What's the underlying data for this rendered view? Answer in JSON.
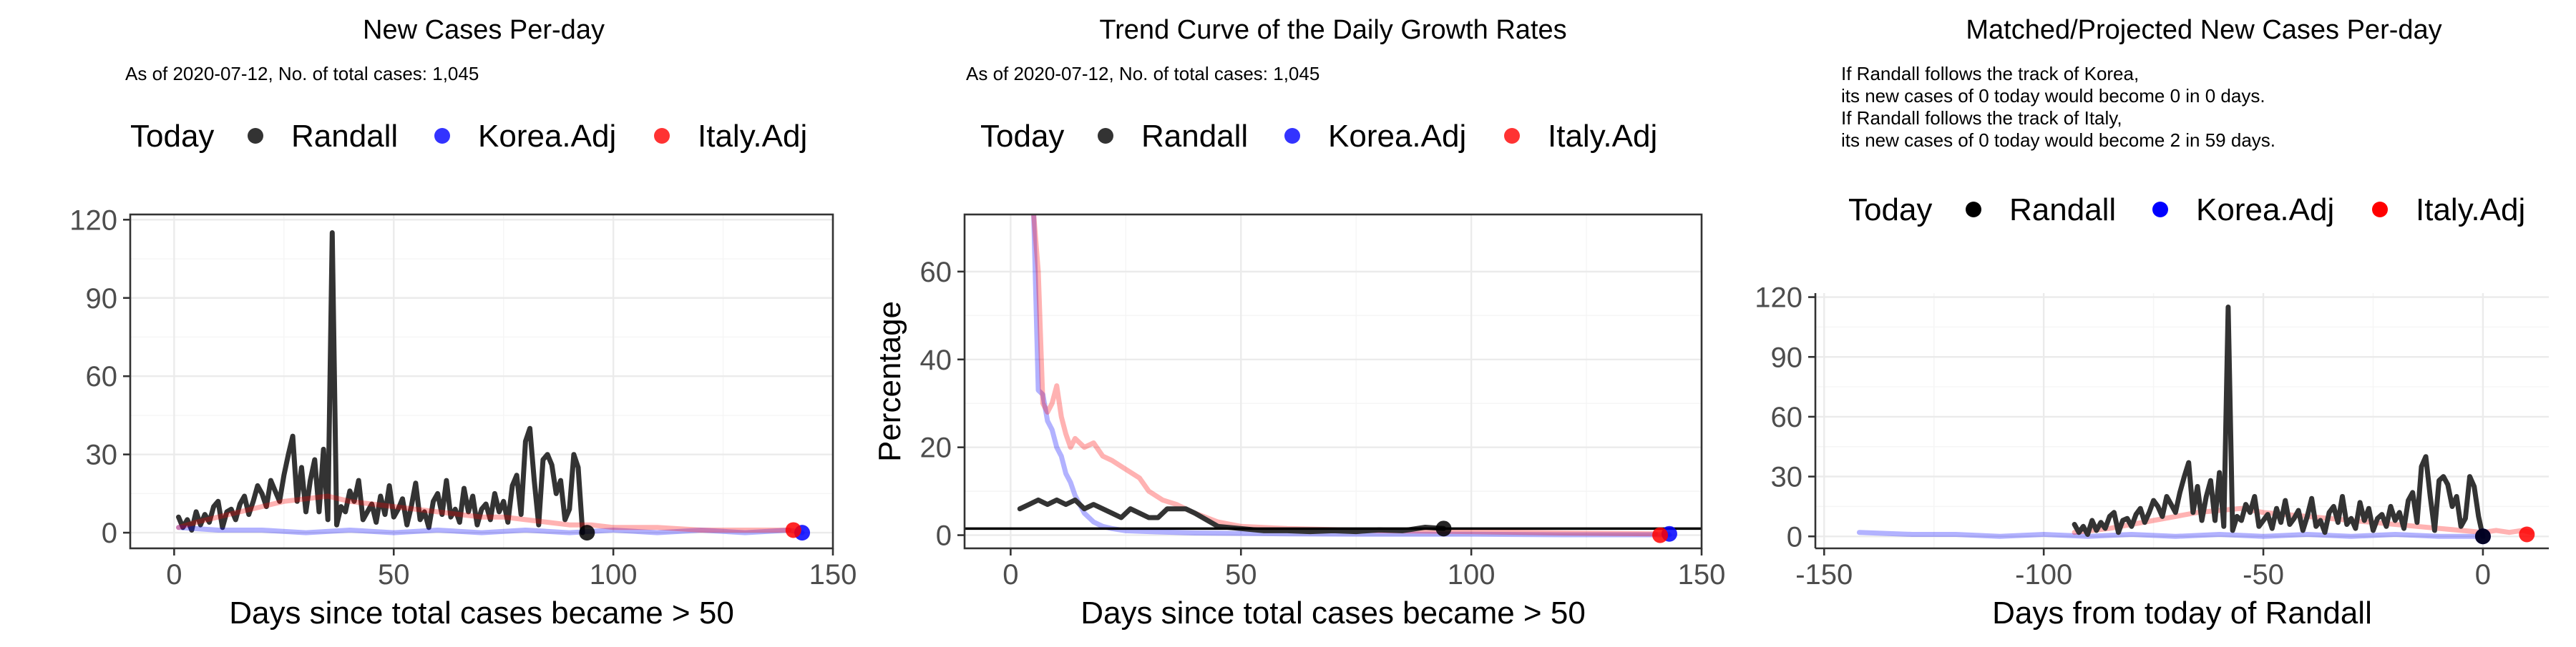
{
  "chart_data": [
    {
      "type": "line",
      "title": "New Cases Per-day",
      "subtitle": "As of 2020-07-12, No. of total cases: 1,045",
      "xlabel": "Days since total cases became > 50",
      "ylabel": "",
      "xlim": [
        -10,
        150
      ],
      "ylim": [
        -6,
        122
      ],
      "xticks": [
        0,
        50,
        100,
        150
      ],
      "xtick_labels": [
        "0",
        "50",
        "100",
        "150"
      ],
      "yticks": [
        0,
        30,
        60,
        90,
        120
      ],
      "ytick_labels": [
        "0",
        "30",
        "60",
        "90",
        "120"
      ],
      "grid": true,
      "legend_position": "top",
      "legend": {
        "title": "Today",
        "items": [
          {
            "name": "Randall",
            "color": "#333333"
          },
          {
            "name": "Korea.Adj",
            "color": "#3333ff"
          },
          {
            "name": "Italy.Adj",
            "color": "#ff3333"
          }
        ]
      },
      "series": [
        {
          "name": "Randall",
          "color": "#333333",
          "x": [
            1,
            2,
            3,
            4,
            5,
            6,
            7,
            8,
            9,
            10,
            11,
            12,
            13,
            14,
            15,
            16,
            17,
            18,
            19,
            20,
            21,
            22,
            23,
            24,
            25,
            26,
            27,
            28,
            29,
            30,
            31,
            32,
            33,
            34,
            35,
            36,
            37,
            38,
            39,
            40,
            41,
            42,
            43,
            44,
            45,
            46,
            47,
            48,
            49,
            50,
            51,
            52,
            53,
            54,
            55,
            56,
            57,
            58,
            59,
            60,
            61,
            62,
            63,
            64,
            65,
            66,
            67,
            68,
            69,
            70,
            71,
            72,
            73,
            74,
            75,
            76,
            77,
            78,
            79,
            80,
            81,
            82,
            83,
            84,
            85,
            86,
            87,
            88,
            89,
            90,
            91,
            92,
            93
          ],
          "y": [
            6,
            2,
            5,
            1,
            8,
            3,
            7,
            4,
            10,
            12,
            2,
            8,
            9,
            5,
            11,
            14,
            7,
            12,
            18,
            15,
            10,
            20,
            16,
            12,
            22,
            30,
            37,
            12,
            25,
            8,
            20,
            28,
            8,
            32,
            5,
            115,
            3,
            10,
            8,
            16,
            12,
            20,
            5,
            8,
            11,
            4,
            14,
            7,
            18,
            6,
            9,
            13,
            3,
            10,
            19,
            5,
            8,
            2,
            12,
            15,
            7,
            20,
            6,
            9,
            4,
            17,
            8,
            14,
            3,
            9,
            11,
            5,
            15,
            8,
            12,
            4,
            18,
            22,
            7,
            35,
            40,
            20,
            3,
            28,
            30,
            26,
            15,
            20,
            5,
            9,
            30,
            25,
            0
          ]
        },
        {
          "name": "Korea.Adj",
          "color": "#0000ff",
          "x": [
            1,
            10,
            20,
            30,
            40,
            50,
            60,
            70,
            80,
            90,
            100,
            110,
            120,
            130,
            140,
            143
          ],
          "y": [
            2,
            1,
            1,
            0,
            1,
            0,
            1,
            0,
            1,
            0,
            1,
            0,
            1,
            0,
            1,
            0
          ]
        },
        {
          "name": "Italy.Adj",
          "color": "#ff0000",
          "x": [
            1,
            5,
            10,
            15,
            20,
            25,
            30,
            35,
            40,
            45,
            50,
            55,
            60,
            65,
            70,
            75,
            80,
            85,
            90,
            95,
            100,
            110,
            120,
            130,
            140
          ],
          "y": [
            2,
            4,
            6,
            8,
            10,
            12,
            13,
            14,
            12,
            11,
            10,
            9,
            8,
            7,
            6,
            6,
            5,
            4,
            3,
            3,
            2,
            2,
            1,
            1,
            1
          ]
        }
      ],
      "today_points": [
        {
          "name": "Randall",
          "x": 94,
          "y": 0,
          "color": "#000000"
        },
        {
          "name": "Korea.Adj",
          "x": 143,
          "y": 0,
          "color": "#0000ff"
        },
        {
          "name": "Italy.Adj",
          "x": 141,
          "y": 1,
          "color": "#ff0000"
        }
      ]
    },
    {
      "type": "line",
      "title": "Trend Curve of the Daily Growth Rates",
      "subtitle": "As of 2020-07-12, No. of total cases: 1,045",
      "xlabel": "Days since total cases became > 50",
      "ylabel": "Percentage",
      "xlim": [
        -10,
        150
      ],
      "ylim": [
        -3,
        73
      ],
      "xticks": [
        0,
        50,
        100,
        150
      ],
      "xtick_labels": [
        "0",
        "50",
        "100",
        "150"
      ],
      "yticks": [
        0,
        20,
        40,
        60
      ],
      "ytick_labels": [
        "0",
        "20",
        "40",
        "60"
      ],
      "grid": true,
      "hline": 1.5,
      "legend_position": "top",
      "legend": {
        "title": "Today",
        "items": [
          {
            "name": "Randall",
            "color": "#333333"
          },
          {
            "name": "Korea.Adj",
            "color": "#3333ff"
          },
          {
            "name": "Italy.Adj",
            "color": "#ff3333"
          }
        ]
      },
      "series": [
        {
          "name": "Korea.Adj",
          "color": "#0000ff",
          "x": [
            5,
            6,
            7,
            8,
            9,
            10,
            11,
            12,
            13,
            14,
            15,
            16,
            18,
            20,
            22,
            25,
            30,
            40,
            60,
            80,
            100,
            120,
            140,
            143
          ],
          "y": [
            73,
            33,
            32,
            26,
            24,
            20,
            18,
            14,
            12,
            9,
            7,
            5,
            3,
            2,
            1.5,
            1,
            0.8,
            0.5,
            0.3,
            0.2,
            0.2,
            0.1,
            0.1,
            0.1
          ]
        },
        {
          "name": "Italy.Adj",
          "color": "#ff0000",
          "x": [
            5,
            6,
            7,
            8,
            9,
            10,
            11,
            12,
            13,
            14,
            16,
            18,
            20,
            22,
            25,
            28,
            30,
            33,
            36,
            40,
            45,
            50,
            60,
            80,
            100,
            120,
            140
          ],
          "y": [
            73,
            60,
            30,
            28,
            30,
            34,
            27,
            23,
            20,
            22,
            20,
            21,
            18,
            17,
            15,
            13,
            10,
            8,
            7,
            5,
            3,
            2,
            1.5,
            1,
            0.8,
            0.5,
            0.3
          ]
        },
        {
          "name": "Randall",
          "color": "#333333",
          "x": [
            2,
            4,
            6,
            8,
            10,
            12,
            14,
            16,
            18,
            20,
            22,
            24,
            26,
            28,
            30,
            32,
            34,
            36,
            38,
            40,
            45,
            50,
            55,
            60,
            65,
            70,
            75,
            80,
            85,
            90,
            94
          ],
          "y": [
            6,
            7,
            8,
            7,
            8,
            7,
            8,
            6,
            7,
            6,
            5,
            4,
            6,
            5,
            4,
            4,
            6,
            6,
            6,
            5,
            2,
            1.5,
            1,
            1,
            0.8,
            1,
            0.8,
            1.2,
            1,
            1.8,
            1.5
          ]
        }
      ],
      "today_points": [
        {
          "name": "Randall",
          "x": 94,
          "y": 1.5,
          "color": "#000000"
        },
        {
          "name": "Korea.Adj",
          "x": 143,
          "y": 0.3,
          "color": "#0000ff"
        },
        {
          "name": "Italy.Adj",
          "x": 141,
          "y": 0,
          "color": "#ff0000"
        }
      ]
    },
    {
      "type": "line",
      "title": "Matched/Projected New Cases Per-day",
      "annotation": [
        "If Randall follows the track of Korea,",
        "its new cases of 0 today would become 0 in 0 days.",
        "If Randall follows the track of Italy,",
        "its new cases of 0 today would become 2 in 59 days."
      ],
      "xlabel": "Days from today of Randall",
      "ylabel": "",
      "xlim": [
        -152,
        15
      ],
      "ylim": [
        -6,
        122
      ],
      "xticks": [
        -150,
        -100,
        -50,
        0
      ],
      "xtick_labels": [
        "-150",
        "-100",
        "-50",
        "0"
      ],
      "yticks": [
        0,
        30,
        60,
        90,
        120
      ],
      "ytick_labels": [
        "0",
        "30",
        "60",
        "90",
        "120"
      ],
      "grid": true,
      "legend_position": "top",
      "legend": {
        "title": "Today",
        "items": [
          {
            "name": "Randall",
            "color": "#000000"
          },
          {
            "name": "Korea.Adj",
            "color": "#0000ff"
          },
          {
            "name": "Italy.Adj",
            "color": "#ff0000"
          }
        ]
      },
      "series": [
        {
          "name": "Korea.Adj",
          "color": "#0000ff",
          "x": [
            -142,
            -130,
            -120,
            -110,
            -100,
            -90,
            -80,
            -70,
            -60,
            -50,
            -40,
            -30,
            -20,
            -10,
            0
          ],
          "y": [
            2,
            1,
            1,
            0,
            1,
            0,
            1,
            0,
            1,
            0,
            1,
            0,
            1,
            0,
            0
          ]
        },
        {
          "name": "Italy.Adj",
          "color": "#ff0000",
          "x": [
            -93,
            -85,
            -80,
            -75,
            -70,
            -65,
            -60,
            -55,
            -50,
            -45,
            -40,
            -35,
            -30,
            -25,
            -20,
            -15,
            -10,
            -5,
            0,
            3,
            6,
            9,
            11
          ],
          "y": [
            2,
            4,
            6,
            8,
            10,
            12,
            13,
            14,
            12,
            11,
            10,
            9,
            8,
            7,
            6,
            5,
            4,
            3,
            2,
            3,
            2,
            3,
            2
          ]
        },
        {
          "name": "Randall",
          "color": "#333333",
          "x": [
            -93,
            -92,
            -91,
            -90,
            -89,
            -88,
            -87,
            -86,
            -85,
            -84,
            -83,
            -82,
            -81,
            -80,
            -79,
            -78,
            -77,
            -76,
            -75,
            -74,
            -73,
            -72,
            -71,
            -70,
            -69,
            -68,
            -67,
            -66,
            -65,
            -64,
            -63,
            -62,
            -61,
            -60,
            -59,
            -58,
            -57,
            -56,
            -55,
            -54,
            -53,
            -52,
            -51,
            -50,
            -49,
            -48,
            -47,
            -46,
            -45,
            -44,
            -43,
            -42,
            -41,
            -40,
            -39,
            -38,
            -37,
            -36,
            -35,
            -34,
            -33,
            -32,
            -31,
            -30,
            -29,
            -28,
            -27,
            -26,
            -25,
            -24,
            -23,
            -22,
            -21,
            -20,
            -19,
            -18,
            -17,
            -16,
            -15,
            -14,
            -13,
            -12,
            -11,
            -10,
            -9,
            -8,
            -7,
            -6,
            -5,
            -4,
            -3,
            -2,
            -1,
            0
          ],
          "y": [
            6,
            2,
            5,
            1,
            8,
            3,
            7,
            4,
            10,
            12,
            2,
            8,
            9,
            5,
            11,
            14,
            7,
            12,
            18,
            15,
            10,
            20,
            16,
            12,
            22,
            30,
            37,
            12,
            25,
            8,
            20,
            28,
            8,
            32,
            5,
            115,
            3,
            10,
            8,
            16,
            12,
            20,
            5,
            8,
            11,
            4,
            14,
            7,
            18,
            6,
            9,
            13,
            3,
            10,
            19,
            5,
            8,
            2,
            12,
            15,
            7,
            20,
            6,
            9,
            4,
            17,
            8,
            14,
            3,
            9,
            11,
            5,
            15,
            8,
            12,
            4,
            18,
            22,
            7,
            35,
            40,
            20,
            3,
            28,
            30,
            26,
            15,
            20,
            5,
            9,
            30,
            25,
            10,
            0
          ]
        }
      ],
      "today_points": [
        {
          "name": "Korea.Adj",
          "x": 0,
          "y": 0,
          "color": "#0000ff"
        },
        {
          "name": "Randall",
          "x": 0,
          "y": 0,
          "color": "#000000"
        },
        {
          "name": "Italy.Adj",
          "x": 10,
          "y": 1,
          "color": "#ff0000"
        }
      ]
    }
  ]
}
